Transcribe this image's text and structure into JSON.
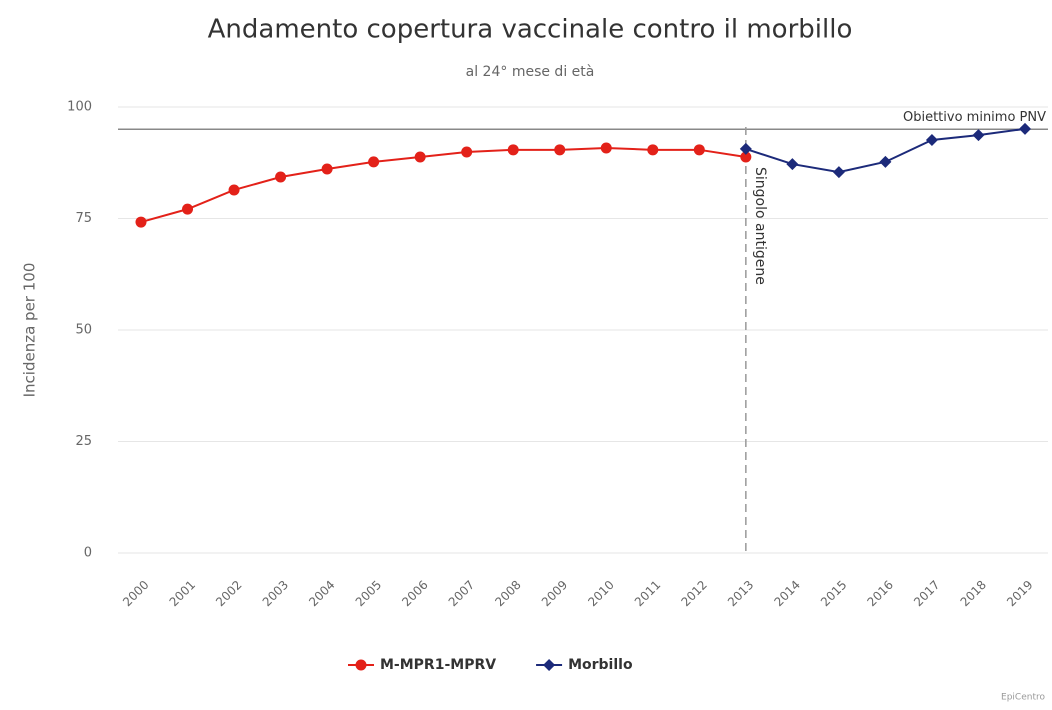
{
  "chart_data": {
    "type": "line",
    "title": "Andamento copertura vaccinale contro il morbillo",
    "subtitle": "al 24° mese di età",
    "y_label": "Incidenza per 100",
    "categories": [
      "2000",
      "2001",
      "2002",
      "2003",
      "2004",
      "2005",
      "2006",
      "2007",
      "2008",
      "2009",
      "2010",
      "2011",
      "2012",
      "2013",
      "2014",
      "2015",
      "2016",
      "2017",
      "2018",
      "2019"
    ],
    "series": [
      {
        "name": "M-MPR1-MPRV",
        "color": "#e32119",
        "marker": "circle",
        "values": [
          74.2,
          77.1,
          81.4,
          84.3,
          86.1,
          87.7,
          88.8,
          89.9,
          90.4,
          90.4,
          90.8,
          90.4,
          90.4,
          88.8,
          null,
          null,
          null,
          null,
          null,
          null
        ]
      },
      {
        "name": "Morbillo",
        "color": "#1c2a7a",
        "marker": "diamond",
        "values": [
          null,
          null,
          null,
          null,
          null,
          null,
          null,
          null,
          null,
          null,
          null,
          null,
          null,
          90.6,
          87.2,
          85.4,
          87.7,
          92.6,
          93.7,
          95.1
        ]
      }
    ],
    "ylim": [
      0,
      100
    ],
    "yticks": [
      0,
      25,
      50,
      75,
      100
    ],
    "grid": true,
    "reference_lines": [
      {
        "axis": "y",
        "value": 95,
        "label": "Obiettivo minimo PNV"
      }
    ],
    "vertical_lines": [
      {
        "x": "2013",
        "label": "Singolo antigene"
      }
    ],
    "legend": "bottom",
    "credit": "EpiCentro"
  }
}
